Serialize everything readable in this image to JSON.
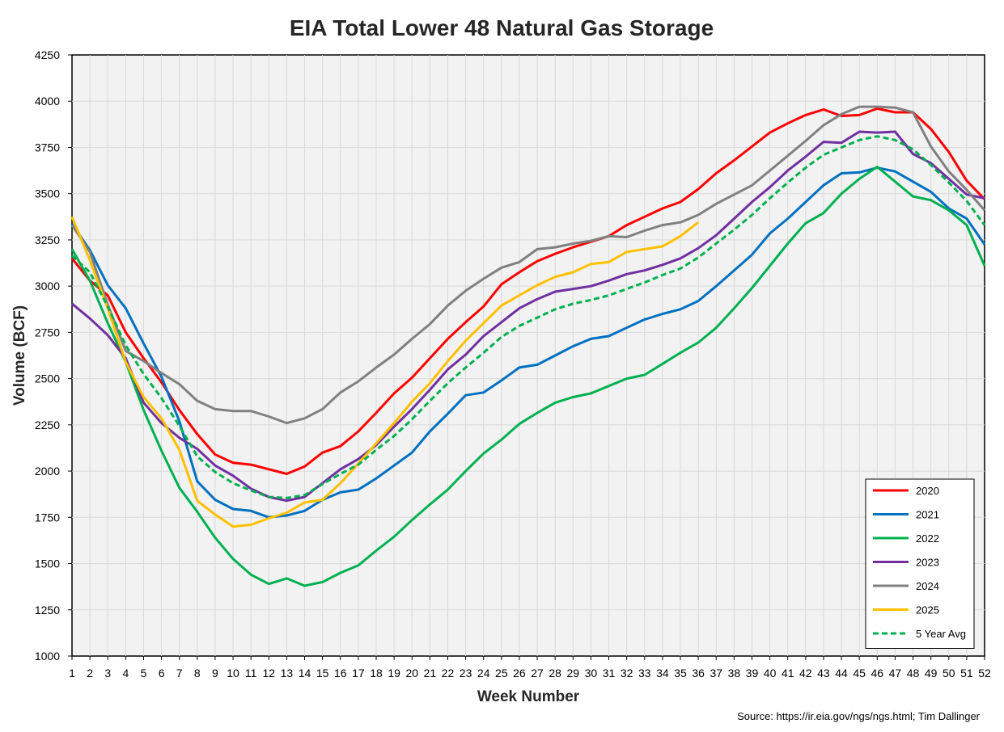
{
  "chart_data": {
    "type": "line",
    "title": "EIA Total Lower 48 Natural Gas Storage",
    "xlabel": "Week Number",
    "ylabel": "Volume (BCF)",
    "source": "Source: https://ir.eia.gov/ngs/ngs.html; Tim Dallinger",
    "xlim": [
      1,
      52
    ],
    "ylim": [
      1000,
      4250
    ],
    "x_ticks": [
      1,
      2,
      3,
      4,
      5,
      6,
      7,
      8,
      9,
      10,
      11,
      12,
      13,
      14,
      15,
      16,
      17,
      18,
      19,
      20,
      21,
      22,
      23,
      24,
      25,
      26,
      27,
      28,
      29,
      30,
      31,
      32,
      33,
      34,
      35,
      36,
      37,
      38,
      39,
      40,
      41,
      42,
      43,
      44,
      45,
      46,
      47,
      48,
      49,
      50,
      51,
      52
    ],
    "y_ticks": [
      1000,
      1250,
      1500,
      1750,
      2000,
      2250,
      2500,
      2750,
      3000,
      3250,
      3500,
      3750,
      4000,
      4250
    ],
    "grid": true,
    "legend_position": "bottom-right",
    "plot_background": "#f2f2f2",
    "grid_color": "#d9d9d9",
    "series": [
      {
        "name": "2020",
        "color": "#ff0000",
        "dashed": false,
        "values": [
          3150,
          3030,
          2950,
          2750,
          2610,
          2480,
          2330,
          2200,
          2090,
          2045,
          2035,
          2010,
          1985,
          2025,
          2100,
          2135,
          2215,
          2315,
          2420,
          2505,
          2610,
          2715,
          2805,
          2890,
          3010,
          3075,
          3135,
          3175,
          3210,
          3240,
          3270,
          3330,
          3375,
          3420,
          3455,
          3525,
          3610,
          3680,
          3755,
          3830,
          3880,
          3925,
          3955,
          3920,
          3925,
          3960,
          3940,
          3940,
          3850,
          3725,
          3570,
          3470
        ]
      },
      {
        "name": "2021",
        "color": "#0070c0",
        "dashed": false,
        "values": [
          3335,
          3195,
          3005,
          2880,
          2690,
          2510,
          2270,
          1945,
          1845,
          1795,
          1785,
          1750,
          1760,
          1785,
          1845,
          1885,
          1900,
          1960,
          2030,
          2100,
          2215,
          2310,
          2410,
          2425,
          2490,
          2560,
          2575,
          2625,
          2675,
          2715,
          2730,
          2775,
          2820,
          2850,
          2875,
          2920,
          3000,
          3085,
          3170,
          3285,
          3365,
          3455,
          3545,
          3610,
          3615,
          3640,
          3620,
          3565,
          3510,
          3420,
          3365,
          3225
        ]
      },
      {
        "name": "2022",
        "color": "#00b050",
        "dashed": false,
        "values": [
          3200,
          3030,
          2800,
          2590,
          2330,
          2110,
          1910,
          1780,
          1640,
          1525,
          1440,
          1390,
          1420,
          1380,
          1400,
          1450,
          1490,
          1570,
          1645,
          1735,
          1820,
          1900,
          2000,
          2095,
          2170,
          2255,
          2315,
          2370,
          2400,
          2420,
          2460,
          2500,
          2520,
          2580,
          2640,
          2695,
          2775,
          2880,
          2990,
          3110,
          3230,
          3340,
          3395,
          3500,
          3580,
          3645,
          3565,
          3485,
          3465,
          3410,
          3330,
          3110
        ]
      },
      {
        "name": "2023",
        "color": "#7030a0",
        "dashed": false,
        "values": [
          2905,
          2825,
          2735,
          2610,
          2370,
          2260,
          2180,
          2120,
          2030,
          1975,
          1905,
          1860,
          1840,
          1860,
          1935,
          2010,
          2065,
          2140,
          2240,
          2335,
          2440,
          2550,
          2630,
          2730,
          2805,
          2880,
          2930,
          2970,
          2985,
          3000,
          3030,
          3065,
          3085,
          3115,
          3150,
          3205,
          3275,
          3365,
          3455,
          3535,
          3625,
          3700,
          3780,
          3775,
          3835,
          3830,
          3835,
          3715,
          3665,
          3580,
          3495,
          3475
        ]
      },
      {
        "name": "2024",
        "color": "#808080",
        "dashed": false,
        "values": [
          3330,
          3185,
          2900,
          2650,
          2595,
          2530,
          2470,
          2380,
          2335,
          2325,
          2325,
          2295,
          2260,
          2285,
          2335,
          2425,
          2485,
          2560,
          2630,
          2715,
          2795,
          2895,
          2975,
          3040,
          3100,
          3130,
          3200,
          3210,
          3230,
          3245,
          3270,
          3265,
          3300,
          3330,
          3345,
          3385,
          3445,
          3495,
          3545,
          3625,
          3705,
          3785,
          3870,
          3930,
          3970,
          3970,
          3965,
          3940,
          3755,
          3620,
          3520,
          3410
        ]
      },
      {
        "name": "2025",
        "color": "#ffc000",
        "dashed": false,
        "values": [
          3375,
          3140,
          2880,
          2590,
          2400,
          2285,
          2115,
          1840,
          1765,
          1700,
          1710,
          1745,
          1775,
          1830,
          1845,
          1935,
          2040,
          2150,
          2260,
          2375,
          2475,
          2595,
          2705,
          2800,
          2895,
          2950,
          3005,
          3050,
          3075,
          3120,
          3130,
          3185,
          3200,
          3215,
          3270,
          3345
        ]
      },
      {
        "name": "5 Year Avg",
        "color": "#00b050",
        "dashed": true,
        "values": [
          3165,
          3075,
          2890,
          2680,
          2525,
          2395,
          2245,
          2080,
          1995,
          1935,
          1895,
          1860,
          1855,
          1870,
          1930,
          1985,
          2035,
          2115,
          2190,
          2280,
          2380,
          2475,
          2560,
          2640,
          2725,
          2785,
          2830,
          2875,
          2905,
          2925,
          2950,
          2985,
          3020,
          3060,
          3095,
          3155,
          3230,
          3305,
          3385,
          3475,
          3560,
          3640,
          3710,
          3750,
          3790,
          3810,
          3790,
          3740,
          3655,
          3560,
          3460,
          3330
        ]
      }
    ]
  }
}
